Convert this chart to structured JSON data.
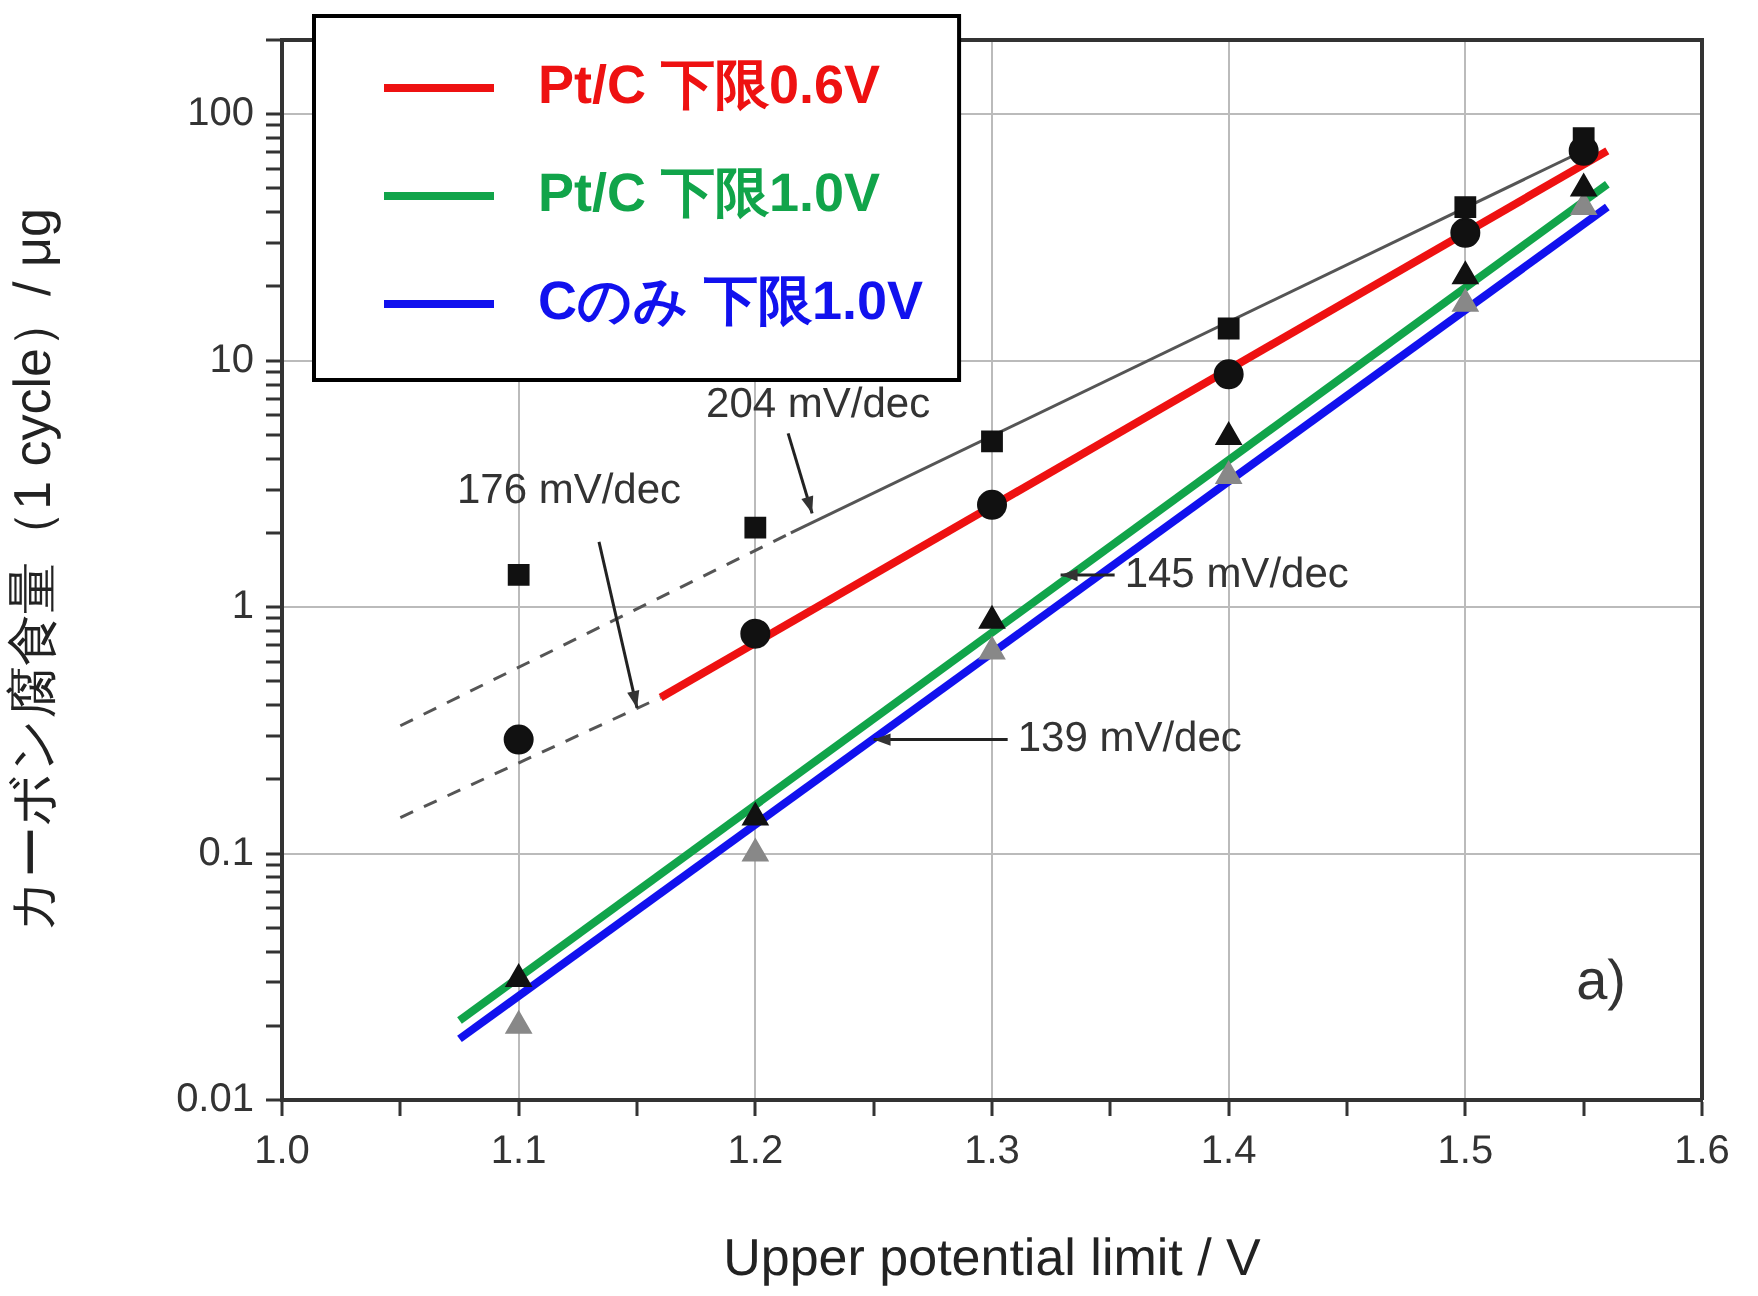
{
  "chart_data": {
    "type": "line",
    "xlabel": "Upper potential limit / V",
    "ylabel": "カーボン腐食量（1 cycle）/ μg",
    "log": "y",
    "grid": true,
    "legend": "top left",
    "xlim": [
      1.0,
      1.6
    ],
    "ylim": [
      0.01,
      200
    ],
    "xticks": [
      {
        "value": 1.0,
        "label": "1.0"
      },
      {
        "value": 1.05,
        "label": null
      },
      {
        "value": 1.1,
        "label": "1.1"
      },
      {
        "value": 1.15,
        "label": null
      },
      {
        "value": 1.2,
        "label": "1.2"
      },
      {
        "value": 1.25,
        "label": null
      },
      {
        "value": 1.3,
        "label": "1.3"
      },
      {
        "value": 1.35,
        "label": null
      },
      {
        "value": 1.4,
        "label": "1.4"
      },
      {
        "value": 1.45,
        "label": null
      },
      {
        "value": 1.5,
        "label": "1.5"
      },
      {
        "value": 1.55,
        "label": null
      },
      {
        "value": 1.6,
        "label": "1.6"
      }
    ],
    "yticks": [
      0.01,
      {
        "value": 0.02,
        "label": null
      },
      {
        "value": 0.03,
        "label": null
      },
      {
        "value": 0.04,
        "label": null
      },
      {
        "value": 0.05,
        "label": null
      },
      {
        "value": 0.06,
        "label": null
      },
      {
        "value": 0.07,
        "label": null
      },
      {
        "value": 0.08,
        "label": null
      },
      {
        "value": 0.09,
        "label": null
      },
      0.1,
      {
        "value": 0.2,
        "label": null
      },
      {
        "value": 0.3,
        "label": null
      },
      {
        "value": 0.4,
        "label": null
      },
      {
        "value": 0.5,
        "label": null
      },
      {
        "value": 0.6,
        "label": null
      },
      {
        "value": 0.7,
        "label": null
      },
      {
        "value": 0.8,
        "label": null
      },
      {
        "value": 0.9,
        "label": null
      },
      1,
      {
        "value": 2,
        "label": null
      },
      {
        "value": 3,
        "label": null
      },
      {
        "value": 4,
        "label": null
      },
      {
        "value": 5,
        "label": null
      },
      {
        "value": 6,
        "label": null
      },
      {
        "value": 7,
        "label": null
      },
      {
        "value": 8,
        "label": null
      },
      {
        "value": 9,
        "label": null
      },
      10,
      {
        "value": 20,
        "label": null
      },
      {
        "value": 30,
        "label": null
      },
      {
        "value": 40,
        "label": null
      },
      {
        "value": 50,
        "label": null
      },
      {
        "value": 60,
        "label": null
      },
      {
        "value": 70,
        "label": null
      },
      {
        "value": 80,
        "label": null
      },
      {
        "value": 90,
        "label": null
      },
      100,
      {
        "value": 200,
        "label": null
      }
    ],
    "series": [
      {
        "type": "scatter",
        "marker": "square",
        "color": "#111111",
        "x": [
          1.1,
          1.2,
          1.3,
          1.4,
          1.5,
          1.55
        ],
        "values": [
          1.35,
          2.1,
          4.7,
          13.5,
          42,
          80
        ]
      },
      {
        "type": "scatter",
        "marker": "circle",
        "color": "#111111",
        "x": [
          1.1,
          1.2,
          1.3,
          1.4,
          1.5,
          1.55
        ],
        "values": [
          0.29,
          0.78,
          2.6,
          8.8,
          33,
          71
        ]
      },
      {
        "type": "scatter",
        "marker": "triangle",
        "color": "#111111",
        "x": [
          1.1,
          1.2,
          1.3,
          1.4,
          1.5,
          1.55
        ],
        "values": [
          0.031,
          0.14,
          0.88,
          4.9,
          22,
          50
        ]
      },
      {
        "type": "scatter",
        "marker": "triangle",
        "color": "#888888",
        "x": [
          1.1,
          1.2,
          1.3,
          1.4,
          1.5,
          1.55
        ],
        "values": [
          0.02,
          0.1,
          0.66,
          3.4,
          17,
          42
        ]
      },
      {
        "line_style": "solid",
        "color": "#555555",
        "x": [
          1.215,
          1.555
        ],
        "values": [
          2.0,
          75
        ]
      },
      {
        "line_style": "dashed",
        "color": "#555555",
        "x": [
          1.05,
          1.215
        ],
        "values": [
          0.33,
          2.0
        ]
      },
      {
        "line_style": "dashed",
        "color": "#555555",
        "x": [
          1.05,
          1.16
        ],
        "values": [
          0.14,
          0.43
        ]
      },
      {
        "line_style": "solid",
        "name": "Pt/C 下限0.6V",
        "color": "#ee1111",
        "x": [
          1.16,
          1.56
        ],
        "values": [
          0.43,
          71
        ]
      },
      {
        "line_style": "solid",
        "name": "Pt/C 下限1.0V",
        "color": "#11a44a",
        "x": [
          1.075,
          1.56
        ],
        "values": [
          0.021,
          52
        ]
      },
      {
        "line_style": "solid",
        "name": "Cのみ 下限1.0V",
        "color": "#1111ee",
        "x": [
          1.075,
          1.56
        ],
        "values": [
          0.0177,
          42
        ]
      }
    ],
    "annotations": [
      {
        "text": "204 mV/dec",
        "x": 1.224,
        "y": 2.4
      },
      {
        "text": "176 mV/dec",
        "x": 1.15,
        "y": 0.39
      },
      {
        "text": "145 mV/dec",
        "x": 1.329,
        "y": 1.35
      },
      {
        "text": "139 mV/dec",
        "x": 1.25,
        "y": 0.29
      },
      "a)"
    ]
  }
}
